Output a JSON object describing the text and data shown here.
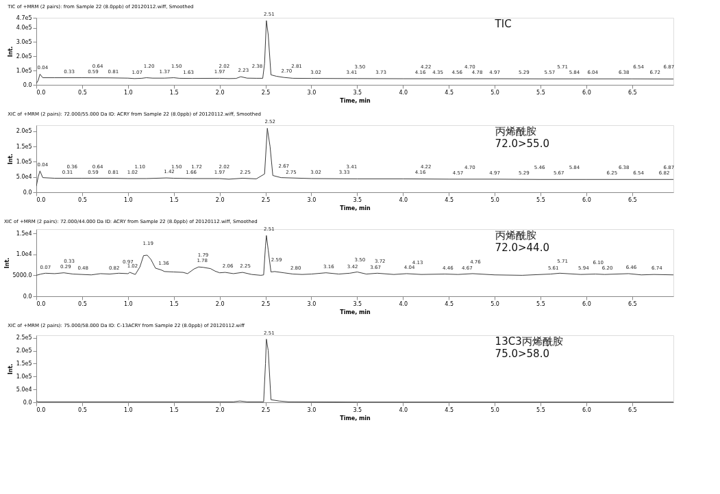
{
  "chart_data": [
    {
      "type": "line",
      "title": "TIC of +MRM (2 pairs): from Sample 22 (8.0ppb) of 20120112.wiff, Smoothed",
      "xlabel": "Time, min",
      "ylabel": "Int.",
      "x": [
        0.0,
        0.02,
        0.04,
        0.07,
        0.2,
        0.5,
        0.8,
        1.0,
        1.07,
        1.15,
        1.2,
        1.27,
        1.4,
        1.5,
        1.56,
        1.7,
        2.0,
        2.1,
        2.18,
        2.23,
        2.3,
        2.4,
        2.47,
        2.49,
        2.51,
        2.53,
        2.56,
        2.62,
        2.7,
        2.8,
        3.0,
        3.5,
        4.0,
        4.5,
        5.0,
        5.5,
        6.0,
        6.5,
        6.95
      ],
      "series": [
        {
          "color": "#3a3a3a",
          "values": [
            10000,
            30000,
            75000,
            50000,
            50000,
            50000,
            49000,
            47000,
            44000,
            46000,
            50000,
            47000,
            47000,
            50000,
            46000,
            45000,
            46000,
            44000,
            45000,
            57000,
            47000,
            46000,
            46000,
            150000,
            450000,
            350000,
            70000,
            60000,
            52000,
            46000,
            45000,
            44000,
            43000,
            43000,
            43000,
            42000,
            42000,
            42000,
            41000
          ]
        }
      ],
      "xlim": [
        0,
        6.95
      ],
      "xticks": [
        {
          "value": 0,
          "label": "0.0"
        },
        {
          "value": 0.5,
          "label": "0.5"
        },
        {
          "value": 1,
          "label": "1.0"
        },
        {
          "value": 1.5,
          "label": "1.5"
        },
        {
          "value": 2,
          "label": "2.0"
        },
        {
          "value": 2.5,
          "label": "2.5"
        },
        {
          "value": 3,
          "label": "3.0"
        },
        {
          "value": 3.5,
          "label": "3.5"
        },
        {
          "value": 4,
          "label": "4.0"
        },
        {
          "value": 4.5,
          "label": "4.5"
        },
        {
          "value": 5,
          "label": "5.0"
        },
        {
          "value": 5.5,
          "label": "5.5"
        },
        {
          "value": 6,
          "label": "6.0"
        },
        {
          "value": 6.5,
          "label": "6.5"
        }
      ],
      "ylim": [
        0,
        470000
      ],
      "yticks": [
        {
          "value": 0,
          "label": "0.0"
        },
        {
          "value": 100000,
          "label": "1.0e5"
        },
        {
          "value": 200000,
          "label": "2.0e5"
        },
        {
          "value": 300000,
          "label": "3.0e5"
        },
        {
          "value": 400000,
          "label": "4.0e5"
        },
        {
          "value": 470000,
          "label": "4.7e5"
        }
      ],
      "annotations": [
        "TIC",
        {
          "text": "0.04",
          "x": 0.04,
          "y": 75000
        },
        {
          "text": "0.33",
          "x": 0.33,
          "y": 50000
        },
        {
          "text": "0.59",
          "x": 0.59,
          "y": 50000
        },
        {
          "text": "0.64",
          "x": 0.64,
          "y": 50000
        },
        {
          "text": "0.81",
          "x": 0.81,
          "y": 49000
        },
        {
          "text": "1.07",
          "x": 1.07,
          "y": 44000
        },
        {
          "text": "1.20",
          "x": 1.2,
          "y": 50000
        },
        {
          "text": "1.37",
          "x": 1.37,
          "y": 47000
        },
        {
          "text": "1.50",
          "x": 1.5,
          "y": 50000
        },
        {
          "text": "1.63",
          "x": 1.63,
          "y": 45000
        },
        {
          "text": "1.97",
          "x": 1.97,
          "y": 46000
        },
        {
          "text": "2.02",
          "x": 2.02,
          "y": 46000
        },
        {
          "text": "2.23",
          "x": 2.23,
          "y": 57000
        },
        {
          "text": "2.38",
          "x": 2.38,
          "y": 46000
        },
        {
          "text": "2.51",
          "x": 2.51,
          "y": 450000
        },
        {
          "text": "2.70",
          "x": 2.7,
          "y": 52000
        },
        {
          "text": "2.81",
          "x": 2.81,
          "y": 46000
        },
        {
          "text": "3.02",
          "x": 3.02,
          "y": 45000
        },
        {
          "text": "3.41",
          "x": 3.41,
          "y": 44000
        },
        {
          "text": "3.50",
          "x": 3.5,
          "y": 44000
        },
        {
          "text": "3.73",
          "x": 3.73,
          "y": 44000
        },
        {
          "text": "4.16",
          "x": 4.16,
          "y": 43000
        },
        {
          "text": "4.22",
          "x": 4.22,
          "y": 43000
        },
        {
          "text": "4.35",
          "x": 4.35,
          "y": 43000
        },
        {
          "text": "4.56",
          "x": 4.56,
          "y": 43000
        },
        {
          "text": "4.70",
          "x": 4.7,
          "y": 43000
        },
        {
          "text": "4.78",
          "x": 4.78,
          "y": 43000
        },
        {
          "text": "4.97",
          "x": 4.97,
          "y": 43000
        },
        {
          "text": "5.29",
          "x": 5.29,
          "y": 43000
        },
        {
          "text": "5.57",
          "x": 5.57,
          "y": 42000
        },
        {
          "text": "5.71",
          "x": 5.71,
          "y": 42000
        },
        {
          "text": "5.84",
          "x": 5.84,
          "y": 42000
        },
        {
          "text": "6.04",
          "x": 6.04,
          "y": 42000
        },
        {
          "text": "6.38",
          "x": 6.38,
          "y": 42000
        },
        {
          "text": "6.54",
          "x": 6.54,
          "y": 42000
        },
        {
          "text": "6.72",
          "x": 6.72,
          "y": 42000
        },
        {
          "text": "6.87",
          "x": 6.87,
          "y": 42000
        }
      ]
    },
    {
      "type": "line",
      "title": "XIC of +MRM (2 pairs): 72.000/55.000 Da ID: ACRY from Sample 22 (8.0ppb) of 20120112.wiff, Smoothed",
      "xlabel": "Time, min",
      "ylabel": "Int.",
      "x": [
        0.0,
        0.02,
        0.04,
        0.07,
        0.2,
        0.5,
        0.8,
        1.0,
        1.2,
        1.42,
        1.5,
        1.7,
        2.0,
        2.1,
        2.25,
        2.4,
        2.49,
        2.52,
        2.55,
        2.58,
        2.67,
        3.0,
        3.5,
        4.0,
        4.5,
        5.0,
        5.5,
        6.0,
        6.5,
        6.95
      ],
      "series": [
        {
          "color": "#3a3a3a",
          "values": [
            20000,
            50000,
            70000,
            48000,
            46000,
            46000,
            46000,
            45000,
            45000,
            47000,
            46000,
            45000,
            45000,
            43000,
            46000,
            44000,
            60000,
            210000,
            150000,
            55000,
            48000,
            45000,
            44000,
            44000,
            43000,
            43000,
            42000,
            42000,
            42000,
            42000
          ]
        }
      ],
      "xlim": [
        0,
        6.95
      ],
      "xticks": [
        {
          "value": 0,
          "label": "0.0"
        },
        {
          "value": 0.5,
          "label": "0.5"
        },
        {
          "value": 1,
          "label": "1.0"
        },
        {
          "value": 1.5,
          "label": "1.5"
        },
        {
          "value": 2,
          "label": "2.0"
        },
        {
          "value": 2.5,
          "label": "2.5"
        },
        {
          "value": 3,
          "label": "3.0"
        },
        {
          "value": 3.5,
          "label": "3.5"
        },
        {
          "value": 4,
          "label": "4.0"
        },
        {
          "value": 4.5,
          "label": "4.5"
        },
        {
          "value": 5,
          "label": "5.0"
        },
        {
          "value": 5.5,
          "label": "5.5"
        },
        {
          "value": 6,
          "label": "6.0"
        },
        {
          "value": 6.5,
          "label": "6.5"
        }
      ],
      "ylim": [
        0,
        220000
      ],
      "yticks": [
        {
          "value": 0,
          "label": "0.0"
        },
        {
          "value": 50000,
          "label": "5.0e4"
        },
        {
          "value": 100000,
          "label": "1.0e5"
        },
        {
          "value": 150000,
          "label": "1.5e5"
        },
        {
          "value": 200000,
          "label": "2.0e5"
        }
      ],
      "annotations": [
        "丙烯酰胺",
        "72.0>55.0",
        {
          "text": "0.04",
          "x": 0.04,
          "y": 70000
        },
        {
          "text": "0.31",
          "x": 0.31,
          "y": 46000
        },
        {
          "text": "0.36",
          "x": 0.36,
          "y": 46000
        },
        {
          "text": "0.59",
          "x": 0.59,
          "y": 46000
        },
        {
          "text": "0.64",
          "x": 0.64,
          "y": 46000
        },
        {
          "text": "0.81",
          "x": 0.81,
          "y": 46000
        },
        {
          "text": "1.02",
          "x": 1.02,
          "y": 45000
        },
        {
          "text": "1.10",
          "x": 1.1,
          "y": 45000
        },
        {
          "text": "1.42",
          "x": 1.42,
          "y": 47000
        },
        {
          "text": "1.50",
          "x": 1.5,
          "y": 46000
        },
        {
          "text": "1.66",
          "x": 1.66,
          "y": 45000
        },
        {
          "text": "1.72",
          "x": 1.72,
          "y": 45000
        },
        {
          "text": "1.97",
          "x": 1.97,
          "y": 45000
        },
        {
          "text": "2.02",
          "x": 2.02,
          "y": 45000
        },
        {
          "text": "2.25",
          "x": 2.25,
          "y": 46000
        },
        {
          "text": "2.52",
          "x": 2.52,
          "y": 210000
        },
        {
          "text": "2.67",
          "x": 2.67,
          "y": 48000
        },
        {
          "text": "2.75",
          "x": 2.75,
          "y": 46000
        },
        {
          "text": "3.02",
          "x": 3.02,
          "y": 45000
        },
        {
          "text": "3.33",
          "x": 3.33,
          "y": 44000
        },
        {
          "text": "3.41",
          "x": 3.41,
          "y": 44000
        },
        {
          "text": "4.16",
          "x": 4.16,
          "y": 44000
        },
        {
          "text": "4.22",
          "x": 4.22,
          "y": 44000
        },
        {
          "text": "4.57",
          "x": 4.57,
          "y": 43000
        },
        {
          "text": "4.70",
          "x": 4.7,
          "y": 43000
        },
        {
          "text": "4.97",
          "x": 4.97,
          "y": 43000
        },
        {
          "text": "5.29",
          "x": 5.29,
          "y": 43000
        },
        {
          "text": "5.46",
          "x": 5.46,
          "y": 42000
        },
        {
          "text": "5.67",
          "x": 5.67,
          "y": 42000
        },
        {
          "text": "5.84",
          "x": 5.84,
          "y": 42000
        },
        {
          "text": "6.25",
          "x": 6.25,
          "y": 42000
        },
        {
          "text": "6.38",
          "x": 6.38,
          "y": 42000
        },
        {
          "text": "6.54",
          "x": 6.54,
          "y": 42000
        },
        {
          "text": "6.82",
          "x": 6.82,
          "y": 42000
        },
        {
          "text": "6.87",
          "x": 6.87,
          "y": 42000
        }
      ]
    },
    {
      "type": "line",
      "title": "XIC of +MRM (2 pairs): 72.000/44.000 Da ID: ACRY from Sample 22 (8.0ppb) of 20120112.wiff, Smoothed",
      "xlabel": "Time, min",
      "ylabel": "Int.",
      "x": [
        0.0,
        0.05,
        0.1,
        0.2,
        0.3,
        0.4,
        0.5,
        0.6,
        0.7,
        0.8,
        0.9,
        1.0,
        1.02,
        1.08,
        1.13,
        1.17,
        1.21,
        1.25,
        1.3,
        1.36,
        1.4,
        1.5,
        1.6,
        1.65,
        1.72,
        1.77,
        1.82,
        1.9,
        1.95,
        2.0,
        2.06,
        2.15,
        2.25,
        2.35,
        2.45,
        2.48,
        2.5,
        2.51,
        2.53,
        2.56,
        2.6,
        2.7,
        2.8,
        2.9,
        3.0,
        3.16,
        3.3,
        3.42,
        3.5,
        3.6,
        3.72,
        3.9,
        4.04,
        4.2,
        4.46,
        4.6,
        4.76,
        5.0,
        5.3,
        5.61,
        5.71,
        5.94,
        6.1,
        6.2,
        6.46,
        6.6,
        6.74,
        6.95
      ],
      "series": [
        {
          "color": "#3a3a3a",
          "values": [
            5000,
            5300,
            5500,
            5400,
            5600,
            5300,
            5200,
            5100,
            5400,
            5300,
            5500,
            5400,
            5700,
            5200,
            7000,
            9700,
            9800,
            8800,
            6700,
            6300,
            5900,
            5800,
            5700,
            5400,
            6500,
            7000,
            6900,
            6600,
            6000,
            5600,
            5700,
            5400,
            5700,
            5200,
            5000,
            5100,
            12000,
            14500,
            11000,
            5800,
            5900,
            5600,
            5300,
            5200,
            5300,
            5600,
            5300,
            5500,
            5800,
            5300,
            5500,
            5200,
            5400,
            5200,
            5300,
            5200,
            5400,
            5100,
            5000,
            5300,
            5500,
            5200,
            5300,
            5200,
            5400,
            5100,
            5200,
            5100
          ]
        }
      ],
      "xlim": [
        0,
        6.95
      ],
      "xticks": [
        {
          "value": 0,
          "label": "0.0"
        },
        {
          "value": 0.5,
          "label": "0.5"
        },
        {
          "value": 1,
          "label": "1.0"
        },
        {
          "value": 1.5,
          "label": "1.5"
        },
        {
          "value": 2,
          "label": "2.0"
        },
        {
          "value": 2.5,
          "label": "2.5"
        },
        {
          "value": 3,
          "label": "3.0"
        },
        {
          "value": 3.5,
          "label": "3.5"
        },
        {
          "value": 4,
          "label": "4.0"
        },
        {
          "value": 4.5,
          "label": "4.5"
        },
        {
          "value": 5,
          "label": "5.0"
        },
        {
          "value": 5.5,
          "label": "5.5"
        },
        {
          "value": 6,
          "label": "6.0"
        },
        {
          "value": 6.5,
          "label": "6.5"
        }
      ],
      "ylim": [
        0,
        16000
      ],
      "yticks": [
        {
          "value": 0,
          "label": "0.0"
        },
        {
          "value": 5000,
          "label": "5000.0"
        },
        {
          "value": 10000,
          "label": "1.0e4"
        },
        {
          "value": 15000,
          "label": "1.5e4"
        }
      ],
      "annotations": [
        "丙烯酰胺",
        "72.0>44.0",
        {
          "text": "0.07",
          "x": 0.07,
          "y": 5400
        },
        {
          "text": "0.29",
          "x": 0.29,
          "y": 5600
        },
        {
          "text": "0.33",
          "x": 0.33,
          "y": 5500
        },
        {
          "text": "0.48",
          "x": 0.48,
          "y": 5200
        },
        {
          "text": "0.82",
          "x": 0.82,
          "y": 5300
        },
        {
          "text": "0.97",
          "x": 0.97,
          "y": 5400
        },
        {
          "text": "1.02",
          "x": 1.02,
          "y": 5700
        },
        {
          "text": "1.19",
          "x": 1.19,
          "y": 9800
        },
        {
          "text": "1.36",
          "x": 1.36,
          "y": 6300
        },
        {
          "text": "1.78",
          "x": 1.78,
          "y": 7000
        },
        {
          "text": "1.79",
          "x": 1.79,
          "y": 7000
        },
        {
          "text": "2.06",
          "x": 2.06,
          "y": 5700
        },
        {
          "text": "2.25",
          "x": 2.25,
          "y": 5700
        },
        {
          "text": "2.51",
          "x": 2.51,
          "y": 14500
        },
        {
          "text": "2.59",
          "x": 2.59,
          "y": 5900
        },
        {
          "text": "2.80",
          "x": 2.8,
          "y": 5300
        },
        {
          "text": "3.16",
          "x": 3.16,
          "y": 5600
        },
        {
          "text": "3.42",
          "x": 3.42,
          "y": 5500
        },
        {
          "text": "3.50",
          "x": 3.5,
          "y": 5800
        },
        {
          "text": "3.67",
          "x": 3.67,
          "y": 5400
        },
        {
          "text": "3.72",
          "x": 3.72,
          "y": 5500
        },
        {
          "text": "4.04",
          "x": 4.04,
          "y": 5400
        },
        {
          "text": "4.13",
          "x": 4.13,
          "y": 5300
        },
        {
          "text": "4.46",
          "x": 4.46,
          "y": 5300
        },
        {
          "text": "4.67",
          "x": 4.67,
          "y": 5300
        },
        {
          "text": "4.76",
          "x": 4.76,
          "y": 5400
        },
        {
          "text": "5.61",
          "x": 5.61,
          "y": 5300
        },
        {
          "text": "5.71",
          "x": 5.71,
          "y": 5500
        },
        {
          "text": "5.94",
          "x": 5.94,
          "y": 5200
        },
        {
          "text": "6.10",
          "x": 6.1,
          "y": 5300
        },
        {
          "text": "6.20",
          "x": 6.2,
          "y": 5200
        },
        {
          "text": "6.46",
          "x": 6.46,
          "y": 5400
        },
        {
          "text": "6.74",
          "x": 6.74,
          "y": 5200
        }
      ]
    },
    {
      "type": "line",
      "title": "XIC of +MRM (2 pairs): 75.000/58.000 Da ID: C-13ACRY from Sample 22 (8.0ppb) of 20120112.wiff",
      "xlabel": "Time, min",
      "ylabel": "Int.",
      "x": [
        0.0,
        0.02,
        0.5,
        1.0,
        1.5,
        2.0,
        2.15,
        2.22,
        2.3,
        2.48,
        2.5,
        2.51,
        2.53,
        2.56,
        2.65,
        2.75,
        3.5,
        4.5,
        5.5,
        6.95
      ],
      "series": [
        {
          "color": "#3a3a3a",
          "values": [
            5000,
            2000,
            2000,
            2000,
            2000,
            2000,
            2000,
            5000,
            2000,
            2000,
            150000,
            245000,
            200000,
            10000,
            5000,
            2000,
            1000,
            1000,
            1000,
            1000
          ]
        }
      ],
      "xlim": [
        0,
        6.95
      ],
      "xticks": [
        {
          "value": 0,
          "label": "0.0"
        },
        {
          "value": 0.5,
          "label": "0.5"
        },
        {
          "value": 1,
          "label": "1.0"
        },
        {
          "value": 1.5,
          "label": "1.5"
        },
        {
          "value": 2,
          "label": "2.0"
        },
        {
          "value": 2.5,
          "label": "2.5"
        },
        {
          "value": 3,
          "label": "3.0"
        },
        {
          "value": 3.5,
          "label": "3.5"
        },
        {
          "value": 4,
          "label": "4.0"
        },
        {
          "value": 4.5,
          "label": "4.5"
        },
        {
          "value": 5,
          "label": "5.0"
        },
        {
          "value": 5.5,
          "label": "5.5"
        },
        {
          "value": 6,
          "label": "6.0"
        },
        {
          "value": 6.5,
          "label": "6.5"
        }
      ],
      "ylim": [
        0,
        260000
      ],
      "yticks": [
        {
          "value": 0,
          "label": "0.0"
        },
        {
          "value": 50000,
          "label": "5.0e4"
        },
        {
          "value": 100000,
          "label": "1.0e5"
        },
        {
          "value": 150000,
          "label": "1.5e5"
        },
        {
          "value": 200000,
          "label": "2.0e5"
        },
        {
          "value": 250000,
          "label": "2.5e5"
        }
      ],
      "annotations": [
        "13C3丙烯酰胺",
        "75.0>58.0",
        {
          "text": "2.51",
          "x": 2.51,
          "y": 245000
        }
      ]
    }
  ]
}
